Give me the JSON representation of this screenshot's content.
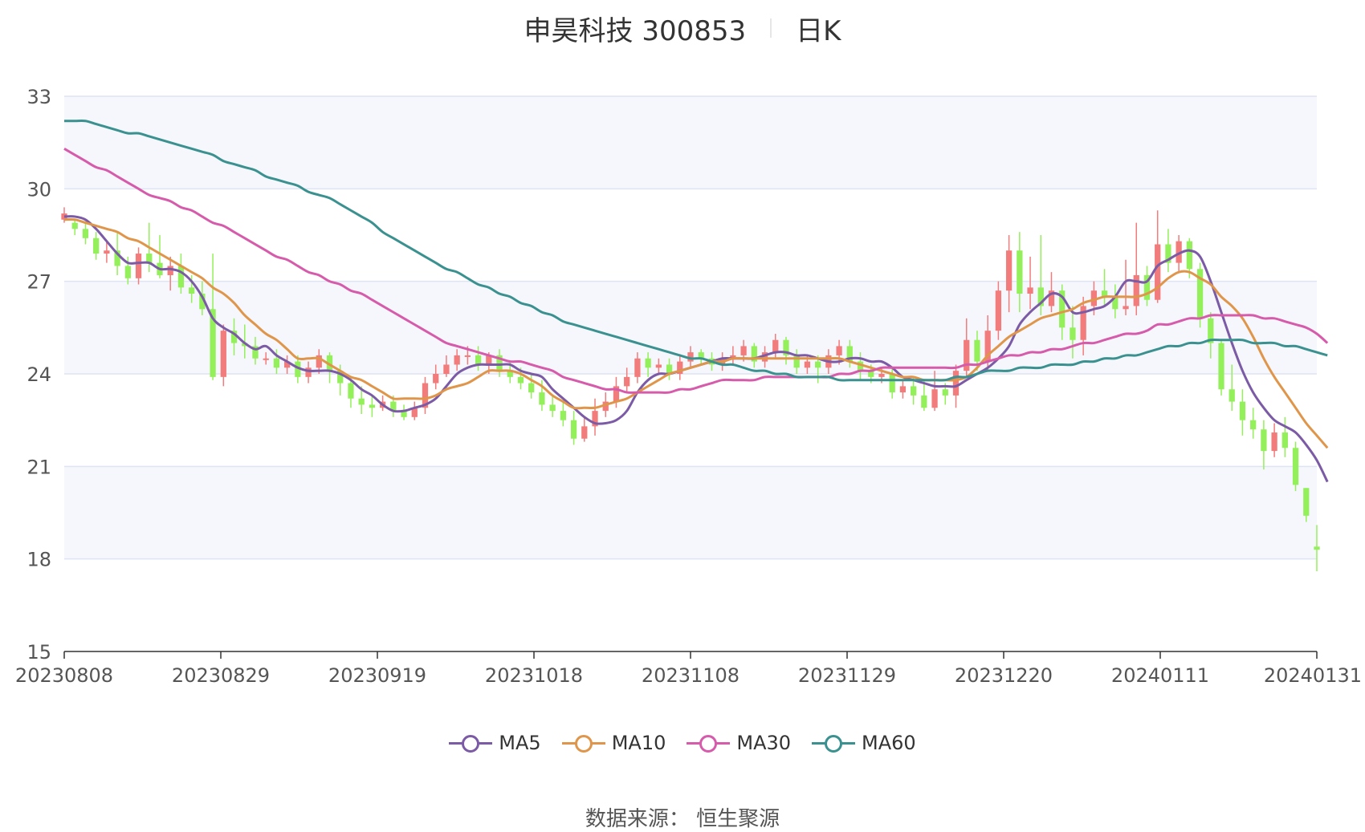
{
  "title": {
    "name": "申昊科技 300853",
    "period": "日K"
  },
  "source": "数据来源：  恒生聚源",
  "chart_data": {
    "type": "candlestick",
    "title": "申昊科技 300853 日K",
    "ylim": [
      15,
      33
    ],
    "yticks": [
      15,
      18,
      21,
      24,
      27,
      30,
      33
    ],
    "x_axis_labels": [
      "20230808",
      "20230829",
      "20230919",
      "20231018",
      "20231108",
      "20231129",
      "20231220",
      "20240111",
      "20240131"
    ],
    "colors": {
      "up": "#f27c7c",
      "down": "#94f05a",
      "grid": "#dfe4f2",
      "band": "#f5f7fc"
    },
    "ma_series": [
      {
        "name": "MA5",
        "color": "#7b5aa6",
        "values": [
          29.1,
          29.1,
          29.0,
          28.7,
          28.3,
          27.9,
          27.6,
          27.6,
          27.6,
          27.4,
          27.4,
          27.3,
          27.0,
          26.5,
          25.8,
          25.5,
          25.3,
          25.0,
          24.8,
          24.9,
          24.6,
          24.4,
          24.2,
          24.1,
          24.1,
          24.1,
          24.0,
          23.8,
          23.5,
          23.3,
          23.0,
          22.8,
          22.8,
          22.9,
          23.0,
          23.2,
          23.6,
          24.0,
          24.2,
          24.3,
          24.3,
          24.3,
          24.3,
          24.1,
          24.0,
          23.9,
          23.5,
          23.2,
          22.9,
          22.6,
          22.4,
          22.4,
          22.5,
          22.8,
          23.4,
          23.8,
          24.0,
          24.0,
          24.1,
          24.2,
          24.3,
          24.4,
          24.5,
          24.5,
          24.5,
          24.5,
          24.6,
          24.7,
          24.7,
          24.6,
          24.6,
          24.5,
          24.4,
          24.4,
          24.5,
          24.5,
          24.4,
          24.4,
          24.2,
          23.9,
          23.8,
          23.7,
          23.6,
          23.6,
          23.6,
          23.8,
          24.0,
          24.2,
          24.5,
          24.9,
          25.6,
          26.0,
          26.3,
          26.6,
          26.5,
          26.0,
          26.0,
          26.1,
          26.2,
          26.5,
          27.0,
          27.0,
          27.0,
          27.5,
          27.7,
          27.9,
          28.0,
          27.8,
          27.0,
          26.0,
          25.0,
          24.1,
          23.4,
          22.9,
          22.5,
          22.3,
          22.1,
          21.7,
          21.2,
          20.5
        ]
      },
      {
        "name": "MA10",
        "color": "#e0964a",
        "values": [
          29.0,
          29.0,
          28.9,
          28.8,
          28.7,
          28.6,
          28.4,
          28.3,
          28.1,
          27.9,
          27.7,
          27.5,
          27.3,
          27.1,
          26.8,
          26.6,
          26.3,
          25.9,
          25.6,
          25.3,
          25.1,
          24.8,
          24.5,
          24.5,
          24.5,
          24.3,
          24.1,
          23.9,
          23.8,
          23.6,
          23.4,
          23.2,
          23.2,
          23.2,
          23.2,
          23.3,
          23.5,
          23.6,
          23.7,
          23.9,
          24.1,
          24.1,
          24.1,
          24.0,
          23.8,
          23.6,
          23.3,
          23.1,
          22.9,
          22.9,
          22.9,
          23.0,
          23.1,
          23.2,
          23.4,
          23.6,
          23.8,
          24.0,
          24.1,
          24.2,
          24.3,
          24.4,
          24.4,
          24.5,
          24.5,
          24.5,
          24.5,
          24.5,
          24.5,
          24.5,
          24.5,
          24.5,
          24.5,
          24.5,
          24.4,
          24.3,
          24.2,
          24.1,
          24.0,
          23.9,
          23.9,
          23.8,
          23.8,
          23.8,
          23.8,
          23.9,
          24.2,
          24.6,
          24.9,
          25.2,
          25.4,
          25.6,
          25.8,
          25.9,
          26.0,
          26.1,
          26.3,
          26.4,
          26.5,
          26.5,
          26.5,
          26.5,
          26.6,
          26.8,
          27.1,
          27.3,
          27.3,
          27.1,
          26.9,
          26.5,
          26.2,
          25.8,
          25.2,
          24.5,
          23.9,
          23.4,
          22.9,
          22.4,
          22.0,
          21.6
        ]
      },
      {
        "name": "MA30",
        "color": "#d65bab",
        "values": [
          31.3,
          31.1,
          30.9,
          30.7,
          30.6,
          30.4,
          30.2,
          30.0,
          29.8,
          29.7,
          29.6,
          29.4,
          29.3,
          29.1,
          28.9,
          28.8,
          28.6,
          28.4,
          28.2,
          28.0,
          27.8,
          27.7,
          27.5,
          27.3,
          27.2,
          27.0,
          26.9,
          26.7,
          26.6,
          26.4,
          26.2,
          26.0,
          25.8,
          25.6,
          25.4,
          25.2,
          25.0,
          24.9,
          24.8,
          24.7,
          24.6,
          24.5,
          24.4,
          24.4,
          24.3,
          24.2,
          24.1,
          23.9,
          23.8,
          23.7,
          23.6,
          23.5,
          23.5,
          23.4,
          23.4,
          23.4,
          23.4,
          23.4,
          23.5,
          23.5,
          23.6,
          23.7,
          23.8,
          23.8,
          23.8,
          23.8,
          23.9,
          23.9,
          23.9,
          23.9,
          23.9,
          23.9,
          23.9,
          24.0,
          24.0,
          24.1,
          24.1,
          24.2,
          24.2,
          24.2,
          24.2,
          24.2,
          24.2,
          24.2,
          24.2,
          24.3,
          24.3,
          24.4,
          24.5,
          24.6,
          24.6,
          24.7,
          24.7,
          24.8,
          24.8,
          24.9,
          25.0,
          25.0,
          25.1,
          25.2,
          25.3,
          25.3,
          25.4,
          25.6,
          25.6,
          25.7,
          25.8,
          25.8,
          25.9,
          25.9,
          25.9,
          25.9,
          25.9,
          25.8,
          25.8,
          25.7,
          25.6,
          25.5,
          25.3,
          25.0
        ]
      },
      {
        "name": "MA60",
        "color": "#3a918f",
        "values": [
          32.2,
          32.2,
          32.2,
          32.1,
          32.0,
          31.9,
          31.8,
          31.8,
          31.7,
          31.6,
          31.5,
          31.4,
          31.3,
          31.2,
          31.1,
          30.9,
          30.8,
          30.7,
          30.6,
          30.4,
          30.3,
          30.2,
          30.1,
          29.9,
          29.8,
          29.7,
          29.5,
          29.3,
          29.1,
          28.9,
          28.6,
          28.4,
          28.2,
          28.0,
          27.8,
          27.6,
          27.4,
          27.3,
          27.1,
          26.9,
          26.8,
          26.6,
          26.5,
          26.3,
          26.2,
          26.0,
          25.9,
          25.7,
          25.6,
          25.5,
          25.4,
          25.3,
          25.2,
          25.1,
          25.0,
          24.9,
          24.8,
          24.7,
          24.6,
          24.5,
          24.5,
          24.4,
          24.3,
          24.3,
          24.2,
          24.1,
          24.1,
          24.0,
          24.0,
          23.9,
          23.9,
          23.9,
          23.9,
          23.8,
          23.8,
          23.8,
          23.8,
          23.8,
          23.8,
          23.8,
          23.8,
          23.8,
          23.8,
          23.8,
          23.9,
          23.9,
          24.0,
          24.1,
          24.1,
          24.1,
          24.2,
          24.2,
          24.2,
          24.3,
          24.3,
          24.3,
          24.4,
          24.4,
          24.5,
          24.5,
          24.6,
          24.6,
          24.7,
          24.8,
          24.9,
          24.9,
          25.0,
          25.0,
          25.1,
          25.1,
          25.1,
          25.1,
          25.0,
          25.0,
          25.0,
          24.9,
          24.9,
          24.8,
          24.7,
          24.6
        ]
      }
    ],
    "candles": [
      [
        29.0,
        29.2,
        29.4,
        28.9
      ],
      [
        28.9,
        28.7,
        29.0,
        28.5
      ],
      [
        28.7,
        28.4,
        28.9,
        28.2
      ],
      [
        28.4,
        27.9,
        28.6,
        27.7
      ],
      [
        27.9,
        28.0,
        28.3,
        27.6
      ],
      [
        28.0,
        27.5,
        28.6,
        27.2
      ],
      [
        27.5,
        27.1,
        27.8,
        26.9
      ],
      [
        27.1,
        27.9,
        28.1,
        26.9
      ],
      [
        27.9,
        27.6,
        28.9,
        27.3
      ],
      [
        27.6,
        27.2,
        28.5,
        27.1
      ],
      [
        27.2,
        27.5,
        27.8,
        26.7
      ],
      [
        27.5,
        26.8,
        27.9,
        26.6
      ],
      [
        26.8,
        26.6,
        27.2,
        26.3
      ],
      [
        26.6,
        26.1,
        27.0,
        25.9
      ],
      [
        26.1,
        23.9,
        27.9,
        23.8
      ],
      [
        23.9,
        25.4,
        25.6,
        23.6
      ],
      [
        25.4,
        25.0,
        25.8,
        24.6
      ],
      [
        25.0,
        24.9,
        25.6,
        24.5
      ],
      [
        24.9,
        24.5,
        25.2,
        24.3
      ],
      [
        24.5,
        24.5,
        24.7,
        24.3
      ],
      [
        24.5,
        24.2,
        24.8,
        24.0
      ],
      [
        24.2,
        24.4,
        24.6,
        24.0
      ],
      [
        24.4,
        23.9,
        24.6,
        23.7
      ],
      [
        23.9,
        24.2,
        24.4,
        23.7
      ],
      [
        24.2,
        24.6,
        24.8,
        24.0
      ],
      [
        24.6,
        24.1,
        24.7,
        23.7
      ],
      [
        24.1,
        23.7,
        24.3,
        23.3
      ],
      [
        23.7,
        23.2,
        23.9,
        22.9
      ],
      [
        23.2,
        23.0,
        23.6,
        22.7
      ],
      [
        23.0,
        22.9,
        23.3,
        22.6
      ],
      [
        22.9,
        23.1,
        23.3,
        22.8
      ],
      [
        23.1,
        22.8,
        23.3,
        22.6
      ],
      [
        22.8,
        22.6,
        23.0,
        22.5
      ],
      [
        22.6,
        22.9,
        23.1,
        22.5
      ],
      [
        22.9,
        23.7,
        23.9,
        22.7
      ],
      [
        23.7,
        24.0,
        24.3,
        23.5
      ],
      [
        24.0,
        24.3,
        24.6,
        23.9
      ],
      [
        24.3,
        24.6,
        24.8,
        24.1
      ],
      [
        24.6,
        24.6,
        24.9,
        24.3
      ],
      [
        24.6,
        24.3,
        24.9,
        24.1
      ],
      [
        24.3,
        24.6,
        24.7,
        24.0
      ],
      [
        24.6,
        24.1,
        24.8,
        23.9
      ],
      [
        24.1,
        23.9,
        24.4,
        23.7
      ],
      [
        23.9,
        23.7,
        24.2,
        23.5
      ],
      [
        23.7,
        23.4,
        24.0,
        23.2
      ],
      [
        23.4,
        23.0,
        23.8,
        22.8
      ],
      [
        23.0,
        22.8,
        23.3,
        22.6
      ],
      [
        22.8,
        22.5,
        23.1,
        22.3
      ],
      [
        22.5,
        21.9,
        22.8,
        21.7
      ],
      [
        21.9,
        22.3,
        22.6,
        21.8
      ],
      [
        22.3,
        22.8,
        23.2,
        22.0
      ],
      [
        22.8,
        23.1,
        23.4,
        22.6
      ],
      [
        23.1,
        23.6,
        23.9,
        22.9
      ],
      [
        23.6,
        23.9,
        24.2,
        23.4
      ],
      [
        23.9,
        24.5,
        24.7,
        23.7
      ],
      [
        24.5,
        24.2,
        24.7,
        23.9
      ],
      [
        24.2,
        24.3,
        24.5,
        24.0
      ],
      [
        24.3,
        24.0,
        24.5,
        23.8
      ],
      [
        24.0,
        24.4,
        24.6,
        23.8
      ],
      [
        24.4,
        24.7,
        24.9,
        24.2
      ],
      [
        24.7,
        24.5,
        24.8,
        24.3
      ],
      [
        24.5,
        24.3,
        24.7,
        24.1
      ],
      [
        24.3,
        24.5,
        24.7,
        24.1
      ],
      [
        24.5,
        24.6,
        24.9,
        24.3
      ],
      [
        24.6,
        24.9,
        25.1,
        24.4
      ],
      [
        24.9,
        24.4,
        25.0,
        24.2
      ],
      [
        24.4,
        24.7,
        24.9,
        24.2
      ],
      [
        24.7,
        25.1,
        25.3,
        24.5
      ],
      [
        25.1,
        24.6,
        25.2,
        24.3
      ],
      [
        24.6,
        24.2,
        24.8,
        24.0
      ],
      [
        24.2,
        24.4,
        24.6,
        24.0
      ],
      [
        24.4,
        24.2,
        24.6,
        23.7
      ],
      [
        24.2,
        24.6,
        24.8,
        24.0
      ],
      [
        24.6,
        24.9,
        25.1,
        24.3
      ],
      [
        24.9,
        24.4,
        25.1,
        24.2
      ],
      [
        24.4,
        24.1,
        24.7,
        23.8
      ],
      [
        24.1,
        23.9,
        24.3,
        23.7
      ],
      [
        23.9,
        24.0,
        24.2,
        23.7
      ],
      [
        24.0,
        23.4,
        24.2,
        23.2
      ],
      [
        23.4,
        23.6,
        23.8,
        23.2
      ],
      [
        23.6,
        23.3,
        23.9,
        23.0
      ],
      [
        23.3,
        22.9,
        23.8,
        22.8
      ],
      [
        22.9,
        23.5,
        24.1,
        22.8
      ],
      [
        23.5,
        23.3,
        23.7,
        23.0
      ],
      [
        23.3,
        24.1,
        24.3,
        22.9
      ],
      [
        24.1,
        25.1,
        25.8,
        23.9
      ],
      [
        25.1,
        24.4,
        25.4,
        24.1
      ],
      [
        24.4,
        25.4,
        25.9,
        24.1
      ],
      [
        25.4,
        26.7,
        27.0,
        25.1
      ],
      [
        26.7,
        28.0,
        28.5,
        26.0
      ],
      [
        28.0,
        26.6,
        28.6,
        26.0
      ],
      [
        26.6,
        26.8,
        27.8,
        26.1
      ],
      [
        26.8,
        26.2,
        28.5,
        25.9
      ],
      [
        26.2,
        26.7,
        27.3,
        26.0
      ],
      [
        26.7,
        25.5,
        26.9,
        25.1
      ],
      [
        25.5,
        25.1,
        26.2,
        24.5
      ],
      [
        25.1,
        26.2,
        26.5,
        24.6
      ],
      [
        26.2,
        26.7,
        27.0,
        25.9
      ],
      [
        26.7,
        26.5,
        27.4,
        26.2
      ],
      [
        26.5,
        26.1,
        26.9,
        25.8
      ],
      [
        26.1,
        26.2,
        27.7,
        25.9
      ],
      [
        26.2,
        27.2,
        28.9,
        25.9
      ],
      [
        27.2,
        26.4,
        27.5,
        26.2
      ],
      [
        26.4,
        28.2,
        29.3,
        26.3
      ],
      [
        28.2,
        27.6,
        28.7,
        27.3
      ],
      [
        27.6,
        28.3,
        28.5,
        27.3
      ],
      [
        28.3,
        27.4,
        28.4,
        27.1
      ],
      [
        27.4,
        25.8,
        27.6,
        25.5
      ],
      [
        25.8,
        25.0,
        26.0,
        24.5
      ],
      [
        25.0,
        23.5,
        25.1,
        23.3
      ],
      [
        23.5,
        23.1,
        24.3,
        22.8
      ],
      [
        23.1,
        22.5,
        23.5,
        22.0
      ],
      [
        22.5,
        22.2,
        22.9,
        21.9
      ],
      [
        22.2,
        21.5,
        22.5,
        20.9
      ],
      [
        21.5,
        22.1,
        22.4,
        21.3
      ],
      [
        22.1,
        21.6,
        22.6,
        21.3
      ],
      [
        21.6,
        20.4,
        21.8,
        20.2
      ],
      [
        20.3,
        19.4,
        20.3,
        19.2
      ],
      [
        18.4,
        18.3,
        19.1,
        17.6
      ]
    ]
  }
}
